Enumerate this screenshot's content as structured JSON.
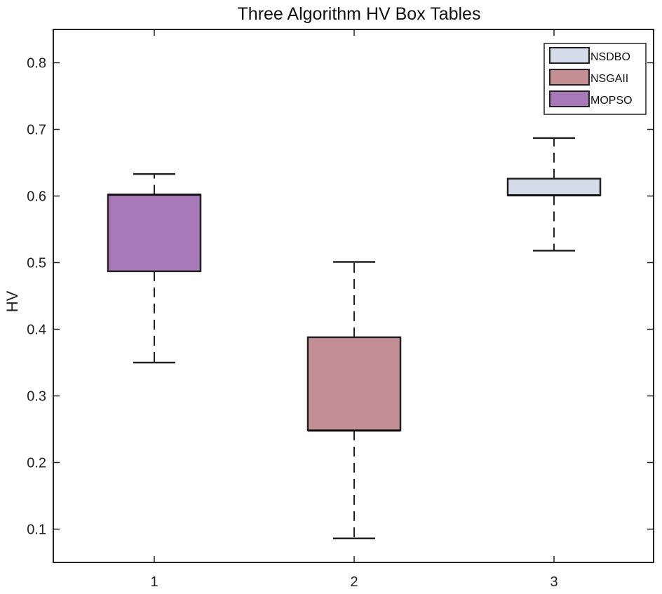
{
  "chart_data": {
    "type": "box",
    "title": "Three Algorithm HV Box Tables",
    "xlabel": "",
    "ylabel": "HV",
    "categories": [
      "1",
      "2",
      "3"
    ],
    "ylim": [
      0.05,
      0.85
    ],
    "yticks": [
      "0.1",
      "0.2",
      "0.3",
      "0.4",
      "0.5",
      "0.6",
      "0.7",
      "0.8"
    ],
    "boxes": [
      {
        "category": "1",
        "series": "MOPSO",
        "min": 0.35,
        "q1": 0.487,
        "median": 0.602,
        "q3": 0.602,
        "max": 0.633,
        "color": "#a879b8"
      },
      {
        "category": "2",
        "series": "NSGAII",
        "min": 0.086,
        "q1": 0.248,
        "median": 0.248,
        "q3": 0.388,
        "max": 0.501,
        "color": "#c48e95"
      },
      {
        "category": "3",
        "series": "NSDBO",
        "min": 0.518,
        "q1": 0.601,
        "median": 0.601,
        "q3": 0.626,
        "max": 0.687,
        "color": "#d4dcea"
      }
    ],
    "legend": {
      "position": "top-right",
      "entries": [
        {
          "name": "NSDBO",
          "color": "#d4dcea"
        },
        {
          "name": "NSGAII",
          "color": "#c48e95"
        },
        {
          "name": "MOPSO",
          "color": "#a879b8"
        }
      ]
    },
    "grid": false
  }
}
